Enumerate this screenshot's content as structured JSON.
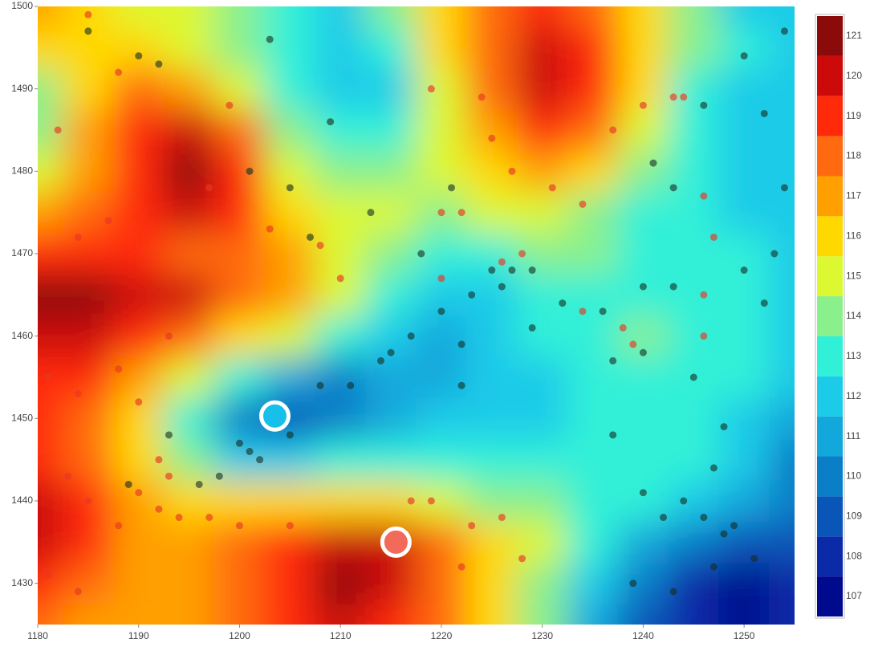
{
  "chart_data": {
    "type": "contour",
    "x": [
      1180,
      1185,
      1190,
      1195,
      1200,
      1205,
      1210,
      1215,
      1220,
      1225,
      1230,
      1235,
      1240,
      1245,
      1250,
      1255
    ],
    "y": [
      1425,
      1430,
      1435,
      1440,
      1445,
      1450,
      1455,
      1460,
      1465,
      1470,
      1475,
      1480,
      1485,
      1490,
      1495,
      1500
    ],
    "z": [
      [
        118,
        117,
        117,
        117,
        118,
        119,
        120,
        119,
        118,
        116,
        114,
        111,
        109,
        108,
        107,
        108
      ],
      [
        119,
        118,
        117,
        117,
        118,
        119,
        120.5,
        120,
        118,
        116,
        114,
        112,
        110,
        108,
        107,
        108
      ],
      [
        120,
        119,
        117,
        117,
        118,
        119,
        120,
        120,
        118,
        116,
        115,
        113,
        111,
        110,
        109,
        109
      ],
      [
        120,
        119,
        117,
        116,
        116,
        116,
        116,
        116,
        115,
        114,
        114,
        113,
        113,
        112,
        111,
        110
      ],
      [
        119,
        118,
        116,
        114,
        112,
        112,
        113,
        113,
        113,
        113,
        113,
        113,
        113,
        113,
        112,
        110
      ],
      [
        119,
        118,
        116,
        113,
        110,
        108.5,
        110,
        111,
        112,
        112,
        112,
        113,
        113,
        113,
        112,
        111
      ],
      [
        119,
        119,
        117,
        115,
        113,
        111,
        110,
        111,
        111,
        112,
        112,
        113,
        113,
        113,
        113,
        112
      ],
      [
        120,
        120,
        119,
        118,
        116,
        115,
        113,
        112,
        111,
        112,
        113,
        113,
        114,
        113,
        113,
        112
      ],
      [
        121,
        120.5,
        120,
        120,
        118,
        117,
        115,
        113,
        112,
        112,
        113,
        113,
        113,
        113,
        113,
        112
      ],
      [
        119,
        119,
        119,
        118,
        118,
        117,
        115,
        114,
        113,
        113,
        114,
        114,
        113,
        113,
        113,
        112
      ],
      [
        117,
        118,
        119,
        120,
        119,
        116,
        115,
        115,
        114,
        115,
        115,
        114,
        113,
        113,
        112,
        112
      ],
      [
        115,
        117,
        119,
        120.5,
        119,
        115,
        114,
        114,
        115,
        116,
        117,
        116,
        114,
        113,
        112,
        112
      ],
      [
        114,
        117,
        119,
        120,
        118,
        114,
        113,
        113,
        115,
        117,
        119,
        118,
        115,
        113,
        112,
        112
      ],
      [
        114,
        116,
        118,
        117,
        115,
        113,
        112,
        112,
        115,
        118,
        120,
        119,
        116,
        113,
        112,
        112
      ],
      [
        116,
        116,
        116,
        115,
        114,
        113,
        112,
        113,
        116,
        118,
        120,
        119,
        116,
        114,
        113,
        112
      ],
      [
        117,
        116,
        115,
        115,
        114,
        113,
        112,
        114,
        116,
        118,
        119,
        118,
        116,
        114,
        112,
        112
      ]
    ],
    "colorscale": [
      "#000a8c",
      "#0a2aa8",
      "#0a56b8",
      "#0a7fc8",
      "#12a8dc",
      "#1ccbe8",
      "#30f0d8",
      "#8af08c",
      "#dcf830",
      "#ffd800",
      "#ff9f00",
      "#ff6a10",
      "#ff2a0a",
      "#cc0a0a",
      "#8b0a0a"
    ],
    "zlim": [
      106.5,
      121.5
    ],
    "zticks": [
      107,
      108,
      109,
      110,
      111,
      112,
      113,
      114,
      115,
      116,
      117,
      118,
      119,
      120,
      121
    ],
    "xlim": [
      1180,
      1255
    ],
    "xticks": [
      1180,
      1190,
      1200,
      1210,
      1220,
      1230,
      1240,
      1250
    ],
    "ylim": [
      1425,
      1500
    ],
    "yticks": [
      1430,
      1440,
      1450,
      1460,
      1470,
      1480,
      1490,
      1500
    ],
    "points": [
      {
        "color": "rgba(20,45,35,0.6)",
        "x": [
          1203,
          1209,
          1213,
          1201,
          1205,
          1207,
          1221,
          1218,
          1225,
          1226,
          1223,
          1220,
          1222,
          1217,
          1214,
          1211,
          1208,
          1204,
          1200,
          1201,
          1202,
          1198,
          1196,
          1193,
          1205,
          1236,
          1240,
          1243,
          1237,
          1240,
          1237,
          1240,
          1244,
          1246,
          1248,
          1247,
          1249,
          1251,
          1243,
          1239,
          1248,
          1247,
          1250,
          1252,
          1253,
          1254,
          1252,
          1250,
          1246,
          1243,
          1241,
          1254,
          1185,
          1190,
          1192,
          1232,
          1229,
          1227,
          1229,
          1222,
          1189,
          1215,
          1245,
          1242
        ],
        "y": [
          1496,
          1486,
          1475,
          1480,
          1478,
          1472,
          1478,
          1470,
          1468,
          1466,
          1465,
          1463,
          1459,
          1460,
          1457,
          1454,
          1454,
          1451,
          1447,
          1446,
          1445,
          1443,
          1442,
          1448,
          1448,
          1463,
          1466,
          1466,
          1457,
          1458,
          1448,
          1441,
          1440,
          1438,
          1436,
          1432,
          1437,
          1433,
          1429,
          1430,
          1449,
          1444,
          1468,
          1464,
          1470,
          1478,
          1487,
          1494,
          1488,
          1478,
          1481,
          1497,
          1497,
          1494,
          1493,
          1464,
          1461,
          1468,
          1468,
          1454,
          1442,
          1458,
          1455,
          1438
        ]
      },
      {
        "color": "rgba(232,55,35,0.65)",
        "x": [
          1185,
          1182,
          1188,
          1184,
          1187,
          1181,
          1184,
          1188,
          1190,
          1193,
          1197,
          1199,
          1203,
          1208,
          1210,
          1219,
          1224,
          1225,
          1227,
          1231,
          1234,
          1220,
          1222,
          1228,
          1226,
          1220,
          1234,
          1238,
          1239,
          1246,
          1246,
          1246,
          1247,
          1240,
          1243,
          1244,
          1237,
          1190,
          1192,
          1194,
          1197,
          1200,
          1205,
          1219,
          1223,
          1226,
          1217,
          1188,
          1185,
          1183,
          1181,
          1184,
          1193,
          1228,
          1222,
          1192
        ],
        "y": [
          1499,
          1485,
          1492,
          1472,
          1474,
          1455,
          1453,
          1456,
          1452,
          1460,
          1478,
          1488,
          1473,
          1471,
          1467,
          1490,
          1489,
          1484,
          1480,
          1478,
          1476,
          1475,
          1475,
          1470,
          1469,
          1467,
          1463,
          1461,
          1459,
          1465,
          1460,
          1477,
          1472,
          1488,
          1489,
          1489,
          1485,
          1441,
          1439,
          1438,
          1438,
          1437,
          1437,
          1440,
          1437,
          1438,
          1440,
          1437,
          1440,
          1443,
          1431,
          1429,
          1443,
          1433,
          1432,
          1445
        ]
      }
    ],
    "highlights": [
      {
        "x": 1203.5,
        "y": 1450.3,
        "color": "#17c0eb"
      },
      {
        "x": 1215.5,
        "y": 1435,
        "color": "#f26a5a"
      }
    ]
  }
}
